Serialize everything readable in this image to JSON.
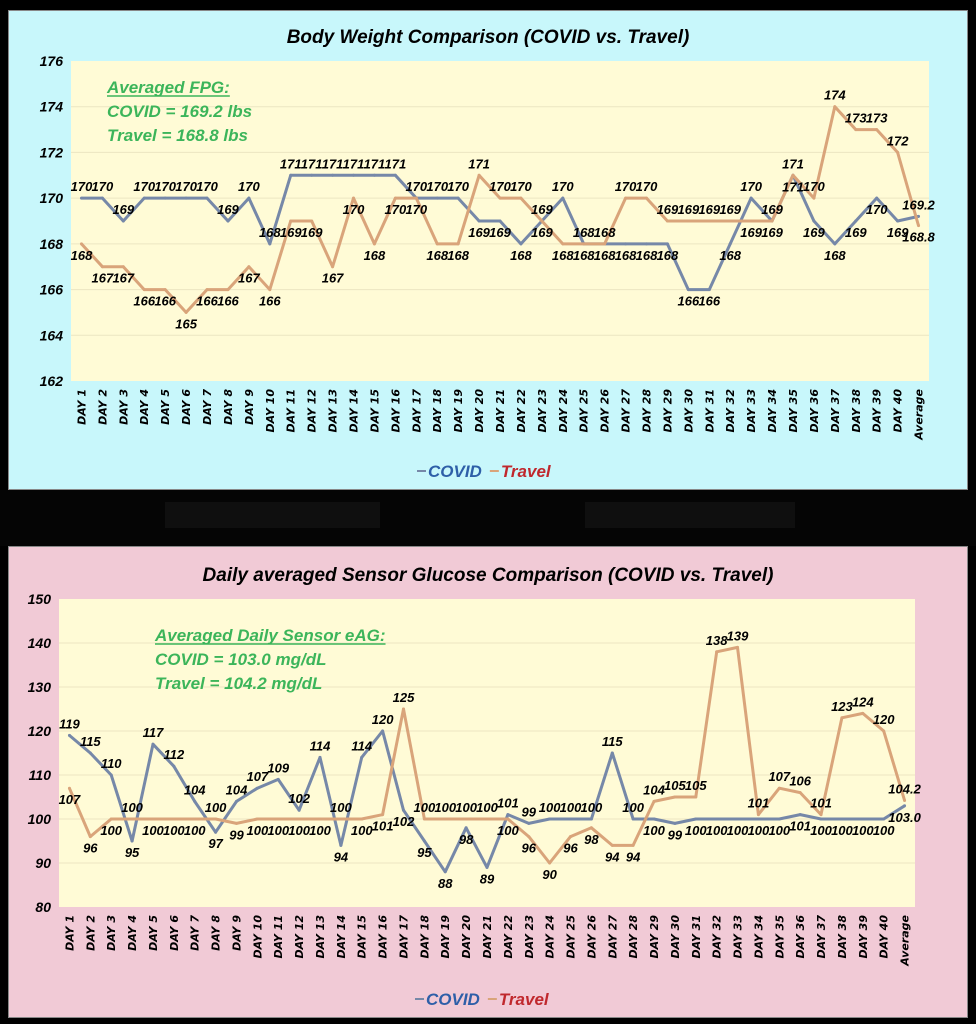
{
  "chart_data": [
    {
      "type": "line",
      "title": "Body Weight Comparison  (COVID vs. Travel)",
      "xlabel": "",
      "ylabel": "",
      "ylim": [
        162,
        176
      ],
      "yticks": [
        162,
        164,
        166,
        168,
        170,
        172,
        174,
        176
      ],
      "grid": true,
      "legend_position": "bottom",
      "categories": [
        "DAY 1",
        "DAY 2",
        "DAY 3",
        "DAY 4",
        "DAY 5",
        "DAY 6",
        "DAY 7",
        "DAY 8",
        "DAY 9",
        "DAY 10",
        "DAY 11",
        "DAY 12",
        "DAY 13",
        "DAY 14",
        "DAY 15",
        "DAY 16",
        "DAY 17",
        "DAY 18",
        "DAY 19",
        "DAY 20",
        "DAY 21",
        "DAY 22",
        "DAY 23",
        "DAY 24",
        "DAY 25",
        "DAY 26",
        "DAY 27",
        "DAY 28",
        "DAY 29",
        "DAY 30",
        "DAY 31",
        "DAY 32",
        "DAY 33",
        "DAY 34",
        "DAY 35",
        "DAY 36",
        "DAY 37",
        "DAY 38",
        "DAY 39",
        "DAY 40",
        "Average"
      ],
      "series": [
        {
          "name": "COVID",
          "color": "#7688a8",
          "legend_color": "#2e5fa8",
          "values": [
            170,
            170,
            169,
            170,
            170,
            170,
            170,
            169,
            170,
            168,
            171,
            171,
            171,
            171,
            171,
            171,
            170,
            170,
            170,
            169,
            169,
            168,
            169,
            170,
            168,
            168,
            168,
            168,
            168,
            166,
            166,
            168,
            170,
            169,
            171,
            169,
            168,
            169,
            170,
            169,
            169.2
          ]
        },
        {
          "name": "Travel",
          "color": "#d9a47a",
          "legend_color": "#c0282d",
          "values": [
            168,
            167,
            167,
            166,
            166,
            165,
            166,
            166,
            167,
            166,
            169,
            169,
            167,
            170,
            168,
            170,
            170,
            168,
            168,
            171,
            170,
            170,
            169,
            168,
            168,
            168,
            170,
            170,
            169,
            169,
            169,
            169,
            169,
            169,
            171,
            170,
            174,
            173,
            173,
            172,
            168.8
          ]
        }
      ],
      "annotation": {
        "heading": "Averaged FPG:",
        "lines": [
          "COVID = 169.2 lbs",
          "Travel = 168.8 lbs"
        ]
      }
    },
    {
      "type": "line",
      "title": "Daily averaged Sensor Glucose Comparison  (COVID vs. Travel)",
      "xlabel": "",
      "ylabel": "",
      "ylim": [
        80,
        150
      ],
      "yticks": [
        80,
        90,
        100,
        110,
        120,
        130,
        140,
        150
      ],
      "grid": true,
      "legend_position": "bottom",
      "categories": [
        "DAY 1",
        "DAY 2",
        "DAY 3",
        "DAY 4",
        "DAY 5",
        "DAY 6",
        "DAY 7",
        "DAY 8",
        "DAY 9",
        "DAY 10",
        "DAY 11",
        "DAY 12",
        "DAY 13",
        "DAY 14",
        "DAY 15",
        "DAY 16",
        "DAY 17",
        "DAY 18",
        "DAY 19",
        "DAY 20",
        "DAY 21",
        "DAY 22",
        "DAY 23",
        "DAY 24",
        "DAY 25",
        "DAY 26",
        "DAY 27",
        "DAY 28",
        "DAY 29",
        "DAY 30",
        "DAY 31",
        "DAY 32",
        "DAY 33",
        "DAY 34",
        "DAY 35",
        "DAY 36",
        "DAY 37",
        "DAY 38",
        "DAY 39",
        "DAY 40",
        "Average"
      ],
      "series": [
        {
          "name": "COVID",
          "color": "#7688a8",
          "legend_color": "#2e5fa8",
          "values": [
            119,
            115,
            110,
            95,
            117,
            112,
            104,
            97,
            104,
            107,
            109,
            102,
            114,
            94,
            114,
            120,
            102,
            95,
            88,
            98,
            89,
            101,
            99,
            100,
            100,
            100,
            115,
            100,
            100,
            99,
            100,
            100,
            100,
            100,
            100,
            101,
            100,
            100,
            100,
            100,
            103.0
          ]
        },
        {
          "name": "Travel",
          "color": "#d9a47a",
          "legend_color": "#c0282d",
          "values": [
            107,
            96,
            100,
            100,
            100,
            100,
            100,
            100,
            99,
            100,
            100,
            100,
            100,
            100,
            100,
            101,
            125,
            100,
            100,
            100,
            100,
            100,
            96,
            90,
            96,
            98,
            94,
            94,
            104,
            105,
            105,
            138,
            139,
            101,
            107,
            106,
            101,
            123,
            124,
            120,
            104.2
          ]
        }
      ],
      "annotation": {
        "heading": "Averaged Daily Sensor eAG:",
        "lines": [
          "COVID = 103.0 mg/dL",
          "Travel = 104.2 mg/dL"
        ]
      }
    }
  ]
}
